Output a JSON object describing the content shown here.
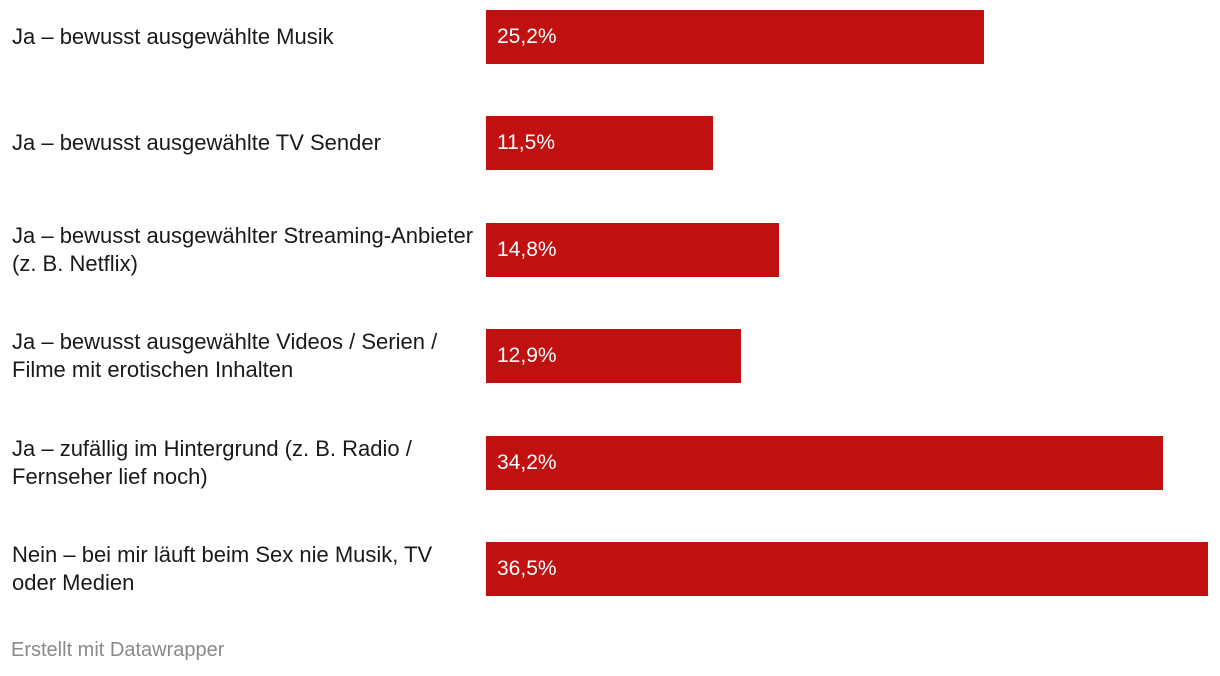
{
  "chart_data": {
    "type": "bar",
    "orientation": "horizontal",
    "categories": [
      "Ja – bewusst ausgewählte Musik",
      "Ja – bewusst ausgewählte TV Sender",
      "Ja – bewusst ausgewählter Streaming-Anbieter (z. B. Netflix)",
      "Ja – bewusst ausgewählte Videos / Serien / Filme mit erotischen Inhalten",
      "Ja – zufällig im Hintergrund (z. B. Radio / Fernseher lief noch)",
      "Nein – bei mir läuft beim Sex nie Musik, TV oder Medien"
    ],
    "values": [
      25.2,
      11.5,
      14.8,
      12.9,
      34.2,
      36.5
    ],
    "value_labels": [
      "25,2%",
      "11,5%",
      "14,8%",
      "12,9%",
      "34,2%",
      "36,5%"
    ],
    "unit": "%",
    "xlim": [
      0,
      36.5
    ],
    "grid": false,
    "bar_color": "#c11010"
  },
  "footer": {
    "credit": "Erstellt mit Datawrapper"
  }
}
